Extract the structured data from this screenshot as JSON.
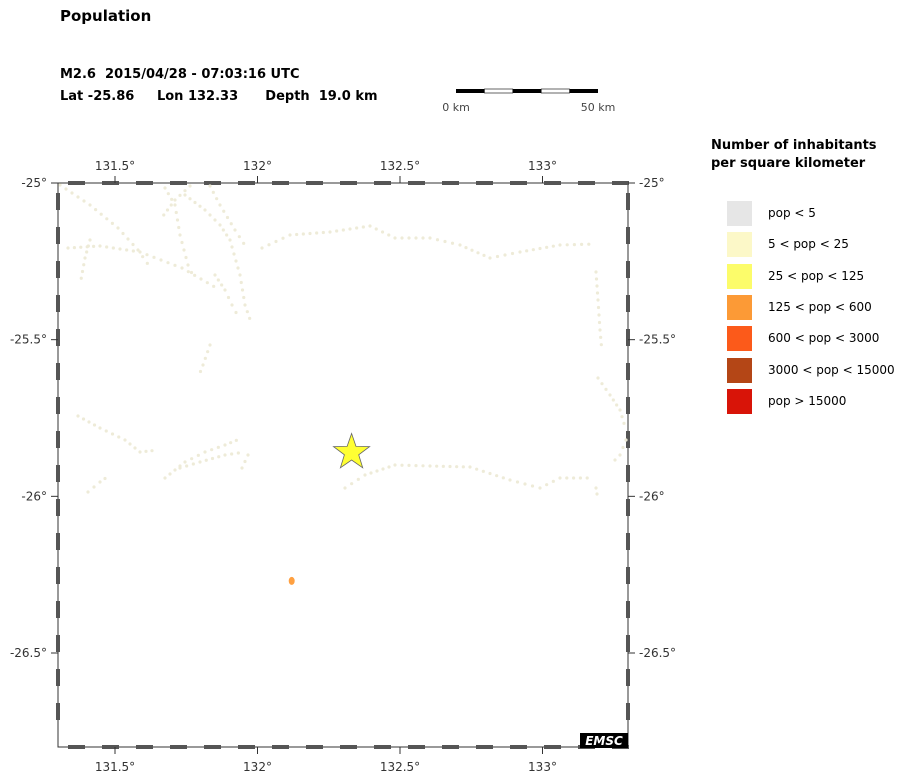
{
  "title": "Population",
  "event": {
    "magnitude": "M2.6",
    "datetime": "2015/04/28 - 07:03:16 UTC",
    "lat": "Lat -25.86",
    "lon": "Lon 132.33",
    "depth": "Depth  19.0 km",
    "lat_value": -25.86,
    "lon_value": 132.33
  },
  "scale_bar": {
    "start_label": "0 km",
    "end_label": "50 km"
  },
  "map": {
    "lon_range": [
      131.3,
      133.3
    ],
    "lat_range": [
      -26.8,
      -25.0
    ],
    "lon_ticks": [
      {
        "value": 131.5,
        "label": "131.5°"
      },
      {
        "value": 132.0,
        "label": "132°"
      },
      {
        "value": 132.5,
        "label": "132.5°"
      },
      {
        "value": 133.0,
        "label": "133°"
      }
    ],
    "lat_ticks": [
      {
        "value": -25.0,
        "label": "-25°"
      },
      {
        "value": -25.5,
        "label": "-25.5°"
      },
      {
        "value": -26.0,
        "label": "-26°"
      },
      {
        "value": -26.5,
        "label": "-26.5°"
      }
    ],
    "road_color": "#eeebd8",
    "hotspot": {
      "lon": 132.12,
      "lat": -26.27,
      "color": "#ffa040"
    },
    "watermark": "EMSC"
  },
  "legend": {
    "title_line1": "Number of inhabitants",
    "title_line2": "per square kilometer",
    "items": [
      {
        "label": "pop < 5",
        "color": "#e6e6e6"
      },
      {
        "label": "5 < pop < 25",
        "color": "#fcf8c8"
      },
      {
        "label": "25 < pop < 125",
        "color": "#fcfc6a"
      },
      {
        "label": "125 < pop < 600",
        "color": "#fc9a36"
      },
      {
        "label": "600 < pop < 3000",
        "color": "#fc5a1a"
      },
      {
        "label": "3000 < pop < 15000",
        "color": "#b44616"
      },
      {
        "label": "pop > 15000",
        "color": "#d81408"
      }
    ]
  }
}
